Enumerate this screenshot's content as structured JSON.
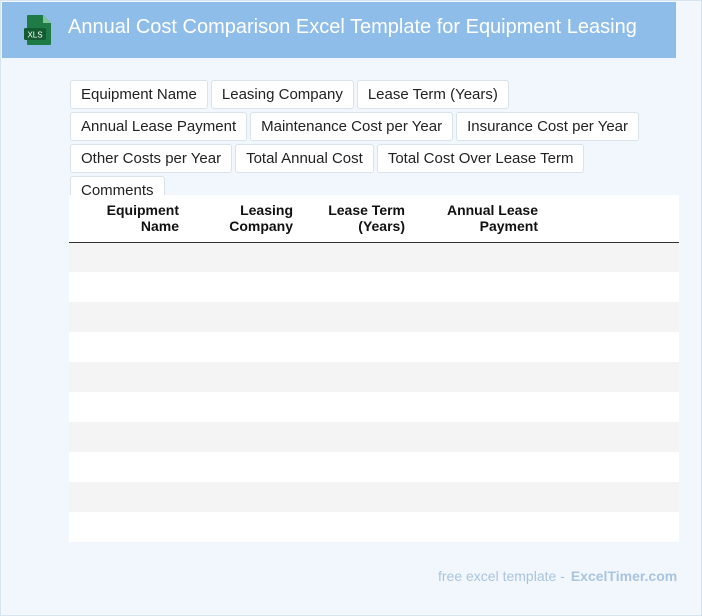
{
  "header": {
    "title": "Annual Cost Comparison Excel Template for Equipment Leasing",
    "icon_label": "XLS"
  },
  "chips": [
    "Equipment Name",
    "Leasing Company",
    "Lease Term (Years)",
    "Annual Lease Payment",
    "Maintenance Cost per Year",
    "Insurance Cost per Year",
    "Other Costs per Year",
    "Total Annual Cost",
    "Total Cost Over Lease Term",
    "Comments"
  ],
  "table": {
    "columns": [
      [
        "Equipment",
        "Name"
      ],
      [
        "Leasing",
        "Company"
      ],
      [
        "Lease Term",
        "(Years)"
      ],
      [
        "Annual Lease",
        "Payment"
      ],
      [
        "Maintenance Cost",
        "per Year"
      ]
    ],
    "empty_rows": 10
  },
  "footer": {
    "text": "free excel template -",
    "brand": "ExcelTimer.com"
  },
  "colors": {
    "header_bg": "#8fbdea",
    "page_bg": "#f1f7fd",
    "excel_green": "#1e7b45"
  }
}
